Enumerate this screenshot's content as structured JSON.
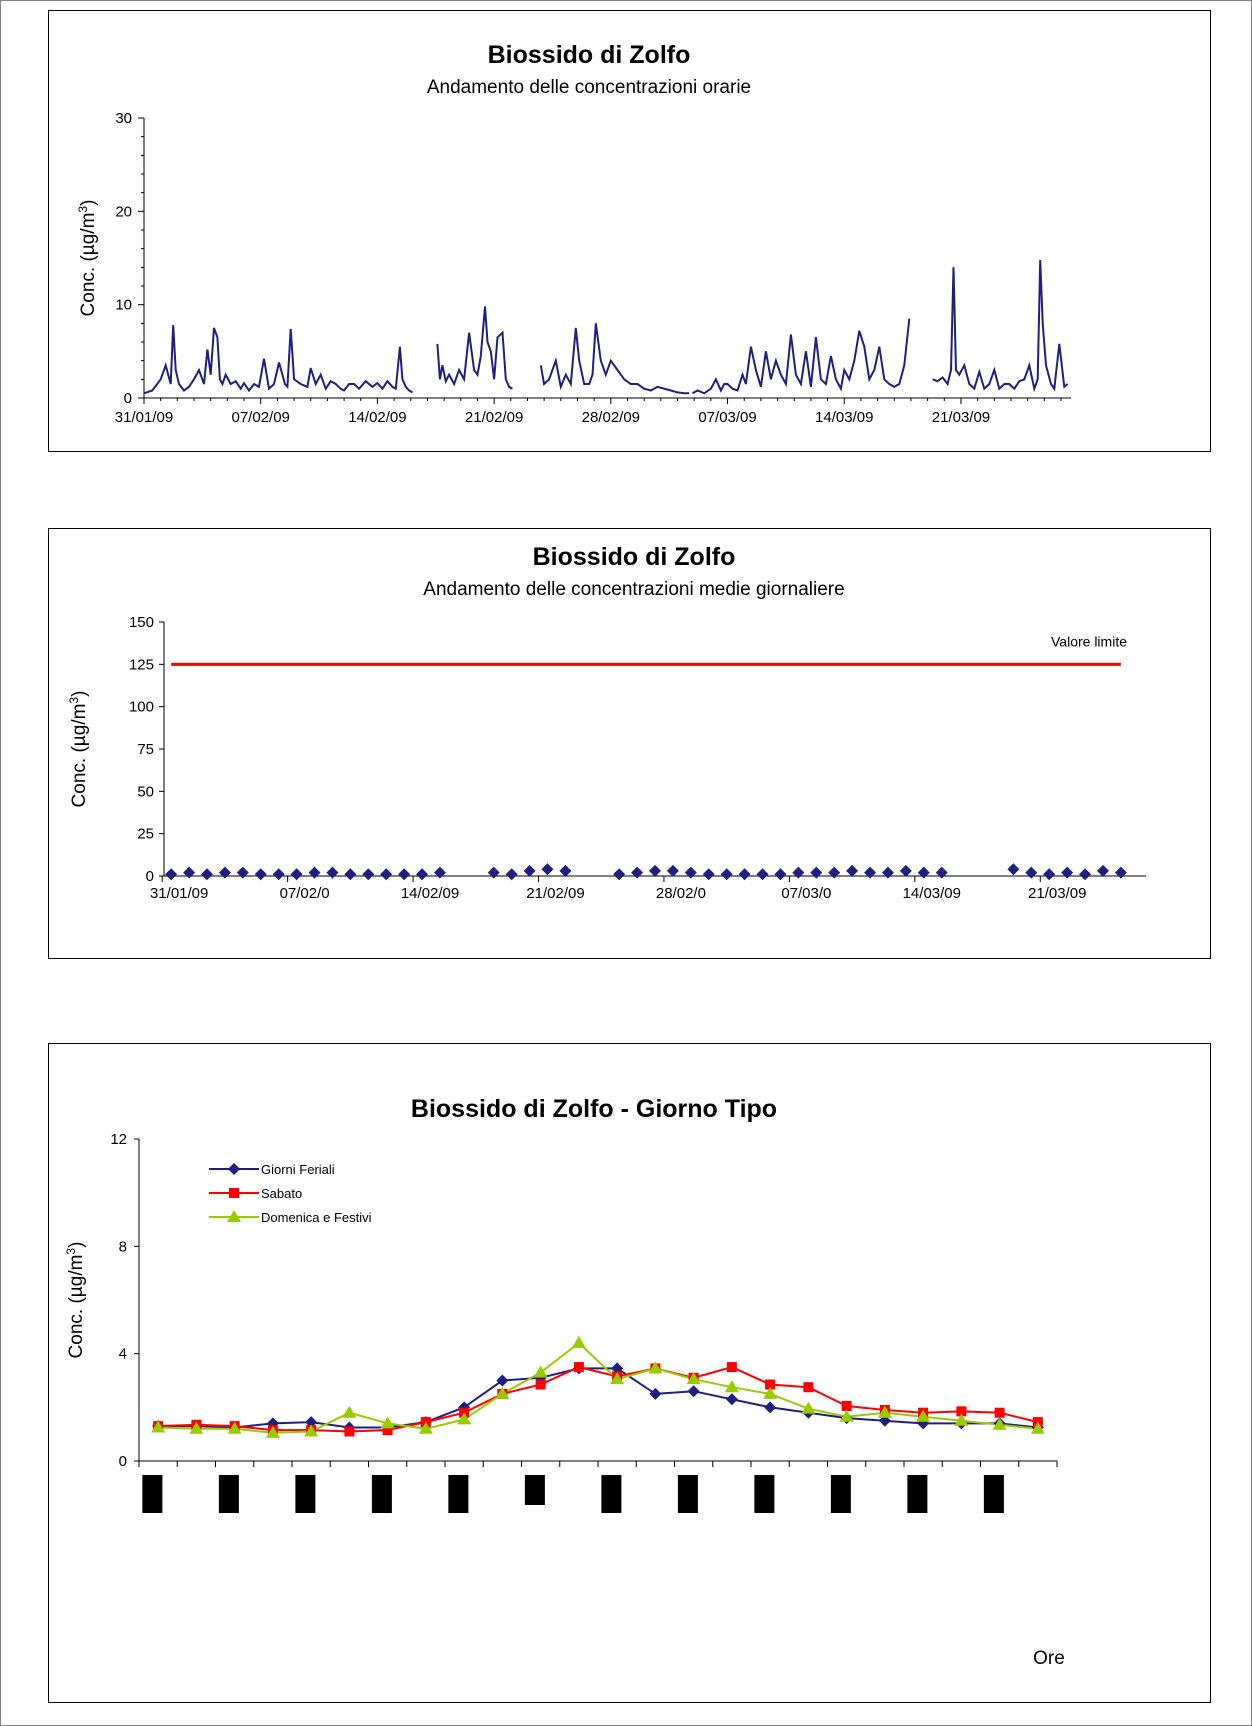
{
  "chart_data": [
    {
      "type": "line",
      "title": "Biossido di Zolfo",
      "subtitle": "Andamento delle concentrazioni orarie",
      "ylabel": "Conc. (µg/m³)",
      "ylabel_base": "Conc. (µg/m",
      "ylabel_sup": "3",
      "ylabel_tail": ")",
      "ylim": [
        0,
        30
      ],
      "yticks": [
        0,
        10,
        20,
        30
      ],
      "x_dates": [
        "31/01/09",
        "07/02/09",
        "14/02/09",
        "21/02/09",
        "28/02/09",
        "07/03/09",
        "14/03/09",
        "21/03/09"
      ],
      "xlim_days": [
        0,
        55.6
      ],
      "line_color": "#1f1f7f",
      "series": [
        {
          "segments": [
            {
              "x": [
                0.0,
                0.5,
                1.0,
                1.3,
                1.6,
                1.75,
                1.9,
                2.1,
                2.4,
                2.7,
                3.0,
                3.3,
                3.6,
                3.8,
                4.0,
                4.2,
                4.4,
                4.55,
                4.7,
                4.9,
                5.2,
                5.5,
                5.8,
                6.0,
                6.3,
                6.6,
                6.9,
                7.2,
                7.5,
                7.8,
                8.1,
                8.3,
                8.45,
                8.6,
                8.8,
                9.0,
                9.4,
                9.8,
                10.0,
                10.3,
                10.6,
                10.9,
                11.2,
                11.5,
                11.8,
                12.0,
                12.3,
                12.6,
                12.9,
                13.3,
                13.7,
                14.0,
                14.3,
                14.6,
                14.9,
                15.1,
                15.35,
                15.5,
                15.7,
                15.9,
                16.1
              ],
              "y": [
                0.5,
                0.8,
                2.0,
                3.5,
                1.5,
                7.8,
                3.0,
                1.5,
                0.8,
                1.2,
                2.0,
                3.0,
                1.5,
                5.2,
                2.5,
                7.5,
                6.5,
                2.0,
                1.5,
                2.5,
                1.5,
                1.8,
                1.0,
                1.6,
                0.8,
                1.5,
                1.2,
                4.2,
                1.0,
                1.5,
                3.8,
                2.5,
                1.5,
                1.2,
                7.4,
                2.0,
                1.5,
                1.2,
                3.2,
                1.5,
                2.5,
                1.0,
                1.8,
                1.5,
                1.0,
                0.8,
                1.5,
                1.5,
                1.0,
                1.8,
                1.2,
                1.6,
                1.0,
                1.8,
                1.2,
                1.0,
                5.5,
                2.0,
                1.2,
                0.8,
                0.6
              ]
            },
            {
              "x": [
                17.6,
                17.75,
                17.9,
                18.1,
                18.3,
                18.6,
                18.9,
                19.2,
                19.5,
                19.8,
                20.0,
                20.2,
                20.45,
                20.6,
                20.8,
                21.0,
                21.2,
                21.5,
                21.7,
                21.9,
                22.1
              ],
              "y": [
                5.8,
                2.0,
                3.5,
                1.8,
                2.5,
                1.5,
                3.0,
                2.0,
                7.0,
                3.0,
                2.5,
                4.5,
                9.8,
                6.0,
                5.0,
                2.0,
                6.5,
                7.0,
                2.0,
                1.2,
                1.0
              ],
              "_": ""
            },
            {
              "x": [
                23.8,
                24.0,
                24.3,
                24.7,
                25.0,
                25.3,
                25.6,
                25.9,
                26.1,
                26.4,
                26.7,
                26.9,
                27.1,
                27.4,
                27.7,
                28.0,
                28.4,
                28.8,
                29.2,
                29.6,
                30.0,
                30.4,
                30.8,
                31.2,
                31.6,
                32.0,
                32.4,
                32.7
              ],
              "y": [
                3.5,
                1.5,
                2.0,
                4.0,
                1.2,
                2.5,
                1.5,
                7.5,
                4.0,
                1.5,
                1.5,
                2.5,
                8.0,
                4.0,
                2.5,
                4.0,
                3.0,
                2.0,
                1.5,
                1.5,
                1.0,
                0.8,
                1.2,
                1.0,
                0.8,
                0.6,
                0.5,
                0.5
              ]
            },
            {
              "x": [
                32.9,
                33.2,
                33.6,
                34.0,
                34.3,
                34.6,
                34.8,
                35.0,
                35.3,
                35.6,
                35.9,
                36.1,
                36.4,
                36.7,
                37.0,
                37.3,
                37.6,
                37.9,
                38.2,
                38.5,
                38.8,
                39.1,
                39.4,
                39.7,
                40.0,
                40.3,
                40.6,
                40.9,
                41.2,
                41.5,
                41.8,
                42.0,
                42.3,
                42.6,
                42.9,
                43.2,
                43.5,
                43.8,
                44.1,
                44.4,
                44.7,
                45.0,
                45.3,
                45.6,
                45.9
              ],
              "y": [
                0.5,
                0.8,
                0.5,
                1.0,
                2.0,
                0.8,
                1.5,
                1.5,
                1.0,
                0.8,
                2.5,
                1.5,
                5.5,
                3.0,
                1.2,
                5.0,
                2.0,
                4.0,
                2.5,
                1.5,
                6.8,
                2.5,
                1.5,
                5.0,
                1.2,
                6.5,
                2.0,
                1.5,
                4.5,
                2.0,
                1.0,
                3.0,
                2.0,
                4.0,
                7.2,
                5.5,
                2.0,
                3.0,
                5.5,
                2.0,
                1.5,
                1.2,
                1.5,
                3.5,
                8.5
              ]
            },
            {
              "x": [
                47.3,
                47.6,
                47.9,
                48.2,
                48.4,
                48.55,
                48.7,
                48.9,
                49.2,
                49.5,
                49.8,
                50.1,
                50.4,
                50.7,
                51.0,
                51.3,
                51.6,
                51.9,
                52.2,
                52.5,
                52.8,
                53.1,
                53.4,
                53.6,
                53.75,
                53.9,
                54.1,
                54.4,
                54.6,
                54.9,
                55.2,
                55.4
              ],
              "y": [
                2.0,
                1.8,
                2.2,
                1.5,
                3.0,
                14.0,
                3.0,
                2.5,
                3.5,
                1.5,
                1.0,
                2.8,
                1.0,
                1.5,
                3.0,
                1.0,
                1.5,
                1.5,
                1.0,
                1.8,
                2.0,
                3.5,
                1.0,
                2.0,
                14.8,
                8.0,
                3.5,
                1.5,
                1.0,
                5.8,
                1.2,
                1.5
              ]
            }
          ]
        }
      ]
    },
    {
      "type": "line",
      "title": "Biossido di Zolfo",
      "subtitle": "Andamento delle concentrazioni medie giornaliere",
      "ylabel": "Conc. (µg/m³)",
      "ylabel_base": "Conc. (µg/m",
      "ylabel_sup": "3",
      "ylabel_tail": ")",
      "ylim": [
        0,
        150
      ],
      "yticks": [
        0,
        25,
        50,
        75,
        100,
        125,
        150
      ],
      "x_dates": [
        "31/01/09",
        "07/02/0",
        "14/02/09",
        "21/02/09",
        "28/02/0",
        "07/03/0",
        "14/03/09",
        "21/03/09"
      ],
      "xlim_days": [
        -0.4,
        54.4
      ],
      "limit_value": 125,
      "limit_label": "Valore limite",
      "limit_color": "#ff0000",
      "marker_color": "#1f1f7f",
      "series": [
        {
          "x": [
            0,
            1,
            2,
            3,
            4,
            5,
            6,
            7,
            8,
            9,
            10,
            11,
            12,
            13,
            14,
            15,
            18,
            19,
            20,
            21,
            22,
            25,
            26,
            27,
            28,
            29,
            30,
            31,
            32,
            33,
            34,
            35,
            36,
            37,
            38,
            39,
            40,
            41,
            42,
            43,
            47,
            48,
            49,
            50,
            51,
            52,
            53
          ],
          "y": [
            1,
            2,
            1,
            2,
            2,
            1,
            1,
            1,
            2,
            2,
            1,
            1,
            1,
            1,
            1,
            2,
            2,
            1,
            3,
            4,
            3,
            1,
            2,
            3,
            3,
            2,
            1,
            1,
            1,
            1,
            1,
            2,
            2,
            2,
            3,
            2,
            2,
            3,
            2,
            2,
            4,
            2,
            1,
            2,
            1,
            3,
            2
          ]
        }
      ]
    },
    {
      "type": "line",
      "title": "Biossido di Zolfo -  Giorno Tipo",
      "ylabel": "Conc. (µg/m³)",
      "ylabel_base": "Conc. (µg/m",
      "ylabel_sup": "3",
      "ylabel_tail": ")",
      "xlabel": "Ore",
      "ylim": [
        0,
        12
      ],
      "yticks": [
        0,
        4,
        8,
        12
      ],
      "x": [
        0,
        1,
        2,
        3,
        4,
        5,
        6,
        7,
        8,
        9,
        10,
        11,
        12,
        13,
        14,
        15,
        16,
        17,
        18,
        19,
        20,
        21,
        22,
        23
      ],
      "legend_position": "top-left",
      "series": [
        {
          "name": "Giorni Feriali",
          "color": "#1f1f7f",
          "marker": "diamond",
          "values": [
            1.3,
            1.3,
            1.25,
            1.4,
            1.45,
            1.25,
            1.25,
            1.45,
            2.0,
            3.0,
            3.1,
            3.45,
            3.45,
            2.5,
            2.6,
            2.3,
            2.0,
            1.8,
            1.6,
            1.5,
            1.4,
            1.4,
            1.4,
            1.25
          ]
        },
        {
          "name": "Sabato",
          "color": "#ff0000",
          "marker": "square",
          "values": [
            1.3,
            1.35,
            1.3,
            1.15,
            1.15,
            1.1,
            1.15,
            1.45,
            1.8,
            2.5,
            2.85,
            3.5,
            3.15,
            3.45,
            3.1,
            3.5,
            2.85,
            2.75,
            2.05,
            1.9,
            1.8,
            1.85,
            1.8,
            1.45
          ]
        },
        {
          "name": "Domenica e Festivi",
          "color": "#99cc00",
          "marker": "triangle",
          "values": [
            1.25,
            1.2,
            1.2,
            1.05,
            1.1,
            1.8,
            1.4,
            1.2,
            1.55,
            2.5,
            3.3,
            4.4,
            3.05,
            3.45,
            3.05,
            2.75,
            2.5,
            1.95,
            1.65,
            1.8,
            1.65,
            1.5,
            1.35,
            1.2
          ]
        }
      ]
    }
  ]
}
